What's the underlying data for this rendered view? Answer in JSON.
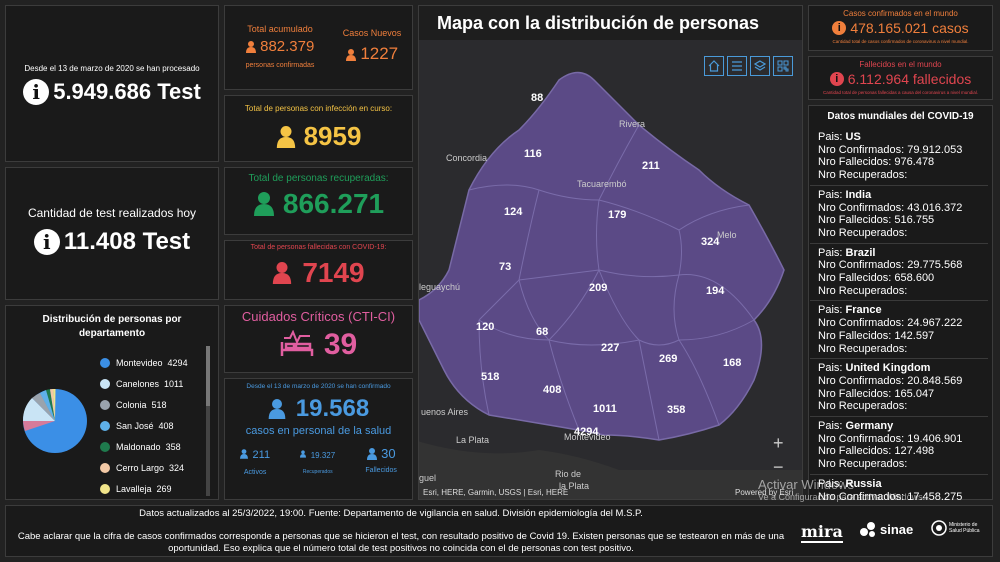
{
  "tests_total": {
    "caption": "Desde el 13 de marzo de 2020 se han procesado",
    "value": "5.949.686 Test"
  },
  "tests_today": {
    "caption": "Cantidad de test realizados hoy",
    "value": "11.408 Test"
  },
  "accumulated": {
    "label": "Total acumulado",
    "value": "882.379",
    "sub": "personas confirmadas"
  },
  "new_cases": {
    "label": "Casos Nuevos",
    "value": "1227"
  },
  "active": {
    "label": "Total de personas con infección en curso:",
    "value": "8959"
  },
  "recovered": {
    "label": "Total de personas recuperadas:",
    "value": "866.271"
  },
  "deceased": {
    "label": "Total de personas fallecidas con COVID-19:",
    "value": "7149"
  },
  "cti": {
    "label": "Cuidados Críticos (CTI-CI)",
    "value": "39"
  },
  "health_staff": {
    "caption": "Desde el 13 de marzo de 2020 se han confirmado",
    "value": "19.568",
    "sub": "casos en personal de la salud",
    "active_value": "211",
    "active_label": "Activos",
    "recovered_value": "19.327",
    "recovered_label": "Recuperados",
    "deceased_value": "30",
    "deceased_label": "Fallecidos"
  },
  "distribution": {
    "title": "Distribución de personas por departamento",
    "items": [
      {
        "name": "Montevideo",
        "value": "4294",
        "color": "#3b8fe6"
      },
      {
        "name": "Canelones",
        "value": "1011",
        "color": "#c9e4f5"
      },
      {
        "name": "Colonia",
        "value": "518",
        "color": "#9aa3ad"
      },
      {
        "name": "San José",
        "value": "408",
        "color": "#5fb0e8"
      },
      {
        "name": "Maldonado",
        "value": "358",
        "color": "#1f7a4d"
      },
      {
        "name": "Cerro Largo",
        "value": "324",
        "color": "#f3c9a6"
      },
      {
        "name": "Lavalleja",
        "value": "269",
        "color": "#f1e48a"
      }
    ]
  },
  "map": {
    "title": "Mapa con la distribución de personas",
    "attribution": "Esri, HERE, Garmin, USGS | Esri, HERE",
    "powered": "Powered by Esri",
    "zoom_in": "+",
    "zoom_out": "−",
    "counts": [
      {
        "v": "88"
      },
      {
        "v": "116"
      },
      {
        "v": "211"
      },
      {
        "v": "124"
      },
      {
        "v": "179"
      },
      {
        "v": "324"
      },
      {
        "v": "73"
      },
      {
        "v": "209"
      },
      {
        "v": "194"
      },
      {
        "v": "120"
      },
      {
        "v": "68"
      },
      {
        "v": "227"
      },
      {
        "v": "269"
      },
      {
        "v": "168"
      },
      {
        "v": "518"
      },
      {
        "v": "408"
      },
      {
        "v": "1011"
      },
      {
        "v": "358"
      },
      {
        "v": "4294"
      }
    ],
    "places": [
      "Rivera",
      "Concordia",
      "Tacuarembó",
      "Melo",
      "leguaychú",
      "uenos Aires",
      "La Plata",
      "Montevideo",
      "Rio de",
      "la Plata",
      "guel"
    ]
  },
  "world_cases": {
    "label": "Casos confirmados en el mundo",
    "value": "478.165.021 casos",
    "sub": "Cantidad total de casos confirmados de coronavirus a nivel mundial."
  },
  "world_deaths": {
    "label": "Fallecidos en el mundo",
    "value": "6.112.964 fallecidos",
    "sub": "Cantidad total de personas fallecidas a causa del coronavirus a nivel mundial."
  },
  "world_data": {
    "title": "Datos mundiales del COVID-19",
    "countries": [
      {
        "pais": "Pais: ",
        "name": "US",
        "confirmed": "Nro Confirmados: 79.912.053",
        "deaths": "Nro Fallecidos: 976.478",
        "recovered": "Nro Recuperados:"
      },
      {
        "pais": "Pais: ",
        "name": "India",
        "confirmed": "Nro Confirmados: 43.016.372",
        "deaths": "Nro Fallecidos: 516.755",
        "recovered": "Nro Recuperados:"
      },
      {
        "pais": "Pais: ",
        "name": "Brazil",
        "confirmed": "Nro Confirmados: 29.775.568",
        "deaths": "Nro Fallecidos: 658.600",
        "recovered": "Nro Recuperados:"
      },
      {
        "pais": "Pais: ",
        "name": "France",
        "confirmed": "Nro Confirmados: 24.967.222",
        "deaths": "Nro Fallecidos: 142.597",
        "recovered": "Nro Recuperados:"
      },
      {
        "pais": "Pais: ",
        "name": "United Kingdom",
        "confirmed": "Nro Confirmados: 20.848.569",
        "deaths": "Nro Fallecidos: 165.047",
        "recovered": "Nro Recuperados:"
      },
      {
        "pais": "Pais: ",
        "name": "Germany",
        "confirmed": "Nro Confirmados: 19.406.901",
        "deaths": "Nro Fallecidos: 127.498",
        "recovered": "Nro Recuperados:"
      },
      {
        "pais": "Pais: ",
        "name": "Russia",
        "confirmed": "Nro Confirmados: 17.458.275",
        "deaths": "",
        "recovered": ""
      }
    ]
  },
  "footer": {
    "line1": "Datos actualizados al 25/3/2022, 19:00. Fuente: Departamento de vigilancia en salud. División epidemiología del M.S.P.",
    "line2": "Cabe aclarar que la cifra de casos confirmados corresponde a personas que se hicieron el test, con resultado positivo de Covid 19. Existen personas que se testearon en más de una oportunidad. Eso explica que el número total de test positivos no coincida con el de personas con test positivo.",
    "logo1": "mira",
    "logo2": "sinae",
    "logo3": "Ministerio de Salud Pública"
  },
  "watermark": {
    "line1": "Activar Windows",
    "line2": "Ve a Configuración para activar Windows."
  },
  "colors": {
    "orange": "#f07f3c",
    "yellow": "#f5c445",
    "green": "#1f9e5a",
    "red": "#e0454f",
    "pink": "#e15ea0",
    "blue": "#4a9ae0",
    "map_purple": "#5b4a86"
  }
}
